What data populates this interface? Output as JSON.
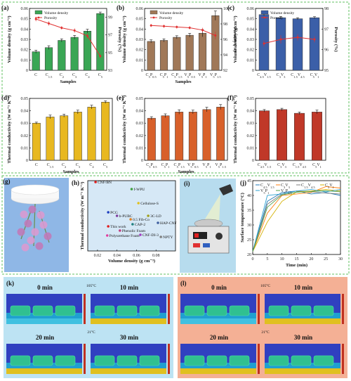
{
  "chart_data": [
    {
      "panel": "(a)",
      "type": "bar+line",
      "categories": [
        "C",
        "C1.5",
        "C2",
        "C3",
        "C4",
        "C5"
      ],
      "series": [
        {
          "name": "Volume density",
          "values": [
            0.018,
            0.022,
            0.029,
            0.032,
            0.038,
            0.055
          ],
          "err": [
            0.0015,
            0.0018,
            0.0015,
            0.0018,
            0.0018,
            0.0015
          ]
        },
        {
          "name": "Porosity",
          "values": [
            98.8,
            98.3,
            97.8,
            97.5,
            96.9,
            94.6
          ],
          "err": [
            0.25,
            0.25,
            0.2,
            0.25,
            0.3,
            0.25
          ]
        }
      ],
      "xlabel": "Samples",
      "ylabel": "Volume density (g cm⁻³)",
      "y2label": "Porosity (%)",
      "ylim": [
        0,
        0.06
      ],
      "y2lim": [
        93,
        100
      ],
      "yticks": [
        "0",
        "0.01",
        "0.02",
        "0.03",
        "0.04",
        "0.05",
        "0.06"
      ],
      "y2ticks": [
        "93",
        "95",
        "97",
        "99"
      ]
    },
    {
      "panel": "(b)",
      "type": "bar+line",
      "categories": [
        "C5P0.5",
        "C5P1",
        "C5P1.5",
        "V5P0.5",
        "V5P1",
        "V5P1.5"
      ],
      "series": [
        {
          "name": "Volume density",
          "values": [
            0.028,
            0.029,
            0.032,
            0.034,
            0.036,
            0.053
          ],
          "err": [
            0.0015,
            0.0015,
            0.0015,
            0.0018,
            0.0035,
            0.0045
          ]
        },
        {
          "name": "Porosity",
          "values": [
            97.8,
            97.7,
            97.6,
            97.5,
            97.2,
            96.5
          ],
          "err": [
            0.2,
            0.2,
            0.2,
            0.2,
            0.3,
            0.5
          ]
        }
      ],
      "xlabel": "Samples",
      "ylabel": "Volume density (g cm⁻³)",
      "y2label": "Porosity (%)",
      "ylim": [
        0,
        0.06
      ],
      "y2lim": [
        92,
        100
      ],
      "yticks": [
        "0",
        "0.01",
        "0.02",
        "0.03",
        "0.04",
        "0.05",
        "0.06"
      ],
      "y2ticks": [
        "92",
        "94",
        "96",
        "98",
        "100"
      ]
    },
    {
      "panel": "(c)",
      "type": "bar+line",
      "categories": [
        "C4.5V1.5",
        "C3V3",
        "C1.5V4.5",
        "C5V1"
      ],
      "series": [
        {
          "name": "Volume density",
          "values": [
            0.054,
            0.051,
            0.05,
            0.051
          ],
          "err": [
            0.001,
            0.0012,
            0.001,
            0.001
          ]
        },
        {
          "name": "Porosity",
          "values": [
            96.3,
            96.5,
            96.6,
            96.5
          ],
          "err": [
            0.15,
            0.2,
            0.15,
            0.15
          ]
        }
      ],
      "xlabel": "",
      "ylabel": "Volume density (g cm⁻³)",
      "y2label": "Porosity (%)",
      "ylim": [
        0,
        0.06
      ],
      "y2lim": [
        95,
        98
      ],
      "yticks": [
        "0",
        "0.01",
        "0.02",
        "0.03",
        "0.04",
        "0.05",
        "0.06"
      ],
      "y2ticks": [
        "95",
        "96",
        "97",
        "98"
      ]
    },
    {
      "panel": "(d)",
      "type": "bar",
      "categories": [
        "C",
        "C1.5",
        "C2",
        "C3",
        "C4",
        "C5"
      ],
      "values": [
        0.03,
        0.035,
        0.036,
        0.039,
        0.043,
        0.047
      ],
      "err": [
        0.0008,
        0.0015,
        0.0012,
        0.0015,
        0.0015,
        0.001
      ],
      "xlabel": "Samples",
      "ylabel": "Thermal conductivity (W m⁻¹ K⁻¹)",
      "ylim": [
        0,
        0.05
      ],
      "yticks": [
        "0",
        "0.01",
        "0.02",
        "0.03",
        "0.04",
        "0.05"
      ]
    },
    {
      "panel": "(e)",
      "type": "bar",
      "categories": [
        "C5P0.5",
        "C5P1",
        "C5P1.5",
        "V5P0.5",
        "V5P1",
        "V5P1.5"
      ],
      "values": [
        0.034,
        0.036,
        0.039,
        0.039,
        0.041,
        0.043
      ],
      "err": [
        0.0012,
        0.0015,
        0.0018,
        0.0015,
        0.0018,
        0.002
      ],
      "xlabel": "Samples",
      "ylabel": "Thermal conductivity (W m⁻¹ K⁻¹)",
      "ylim": [
        0,
        0.05
      ],
      "yticks": [
        "0",
        "0.01",
        "0.02",
        "0.03",
        "0.04",
        "0.05"
      ]
    },
    {
      "panel": "(f)",
      "type": "bar",
      "categories": [
        "C4.5V1.5",
        "C3V3",
        "C1.5V4.5",
        "C5V1"
      ],
      "values": [
        0.04,
        0.041,
        0.038,
        0.039
      ],
      "err": [
        0.001,
        0.001,
        0.001,
        0.0015
      ],
      "xlabel": "",
      "ylabel": "Thermal conductivity (W m⁻¹ K⁻¹)",
      "ylim": [
        0,
        0.05
      ],
      "yticks": [
        "0",
        "0.01",
        "0.02",
        "0.03",
        "0.04",
        "0.05"
      ]
    },
    {
      "panel": "(h)",
      "type": "scatter",
      "xlabel": "Volume density (g cm⁻³)",
      "ylabel": "Thermal conductivity (W m⁻¹ K⁻¹)",
      "xlim": [
        0.01,
        0.1
      ],
      "xticks": [
        "0.02",
        "0.04",
        "0.06",
        "0.08"
      ],
      "points": [
        {
          "label": "CNF/BN",
          "x": 0.018,
          "y": 0.98,
          "color": "#e02020"
        },
        {
          "label": "f-WPU",
          "x": 0.055,
          "y": 0.88,
          "color": "#40a040"
        },
        {
          "label": "Cellulose-S",
          "x": 0.062,
          "y": 0.68,
          "color": "#e0c020"
        },
        {
          "label": "PCG",
          "x": 0.031,
          "y": 0.55,
          "color": "#2040c0"
        },
        {
          "label": "b-PUBC",
          "x": 0.04,
          "y": 0.5,
          "color": "#8040a0"
        },
        {
          "label": "0.5 Fib-Co",
          "x": 0.054,
          "y": 0.45,
          "color": "#e08020"
        },
        {
          "label": "3C-LD",
          "x": 0.072,
          "y": 0.5,
          "color": "#a0a020"
        },
        {
          "label": "CAP-2",
          "x": 0.056,
          "y": 0.38,
          "color": "#208080"
        },
        {
          "label": "HAP-CNF",
          "x": 0.082,
          "y": 0.4,
          "color": "#4060a0"
        },
        {
          "label": "This work",
          "x": 0.031,
          "y": 0.35,
          "color": "#e02020"
        },
        {
          "label": "Phenolic Foam",
          "x": 0.043,
          "y": 0.29,
          "color": "#c04080"
        },
        {
          "label": "Polyurethane Foam",
          "x": 0.03,
          "y": 0.22,
          "color": "#e040a0"
        },
        {
          "label": "CNF-DI-3",
          "x": 0.064,
          "y": 0.23,
          "color": "#a040c0"
        },
        {
          "label": "NPTY",
          "x": 0.085,
          "y": 0.2,
          "color": "#808080"
        }
      ]
    },
    {
      "panel": "(j)",
      "type": "line",
      "x": [
        0,
        5,
        10,
        15,
        20,
        25,
        30
      ],
      "series": [
        {
          "name": "C4.5V1.5",
          "values": [
            21,
            38,
            41,
            41.5,
            40.5,
            41,
            40
          ],
          "color": "#1f77b4"
        },
        {
          "name": "C3V3",
          "values": [
            21,
            34,
            40,
            40.5,
            41,
            43,
            42.5
          ],
          "color": "#ff7f0e"
        },
        {
          "name": "C1.5V4.5",
          "values": [
            21,
            37,
            40.5,
            41.5,
            41.2,
            40.8,
            40.5
          ],
          "color": "#7f7f7f"
        },
        {
          "name": "C5V1",
          "values": [
            21,
            31,
            38,
            41.2,
            41.5,
            42,
            41.5
          ],
          "color": "#d4b000"
        },
        {
          "name": "V5P1",
          "values": [
            21,
            40,
            40.5,
            41.5,
            42,
            41.2,
            42
          ],
          "color": "#2ca0d0"
        },
        {
          "name": "V5P1.5",
          "values": [
            21,
            36,
            40.2,
            41.1,
            41.3,
            41.6,
            41.2
          ],
          "color": "#50a050"
        }
      ],
      "xlabel": "Time (min)",
      "ylabel": "Surface temperature (°C)",
      "xlim": [
        0,
        30
      ],
      "ylim": [
        20,
        45
      ],
      "xticks": [
        "0",
        "5",
        "10",
        "15",
        "20",
        "25",
        "30"
      ],
      "yticks": [
        "20",
        "25",
        "30",
        "35",
        "40",
        "45"
      ]
    }
  ],
  "panels": {
    "g": {
      "label": "(g)"
    },
    "i": {
      "label": "(i)"
    },
    "k": {
      "label": "(k)",
      "times": [
        "0 min",
        "10 min",
        "20 min",
        "30 min"
      ],
      "scale_max": "105°C",
      "scale_min": "21°C"
    },
    "l": {
      "label": "(l)",
      "times": [
        "0 min",
        "10 min",
        "20 min",
        "30 min"
      ],
      "scale_max": "105°C",
      "scale_min": "21°C"
    }
  },
  "colors": {
    "a_bar": "#3aa655",
    "b_bar": "#a07858",
    "c_bar": "#3b5fa8",
    "d_bar": "#e8b820",
    "e_bar": "#d8602a",
    "f_bar": "#c03828",
    "line": "#e03030",
    "k_bg": "#bde3f3",
    "l_bg": "#f4b095"
  }
}
